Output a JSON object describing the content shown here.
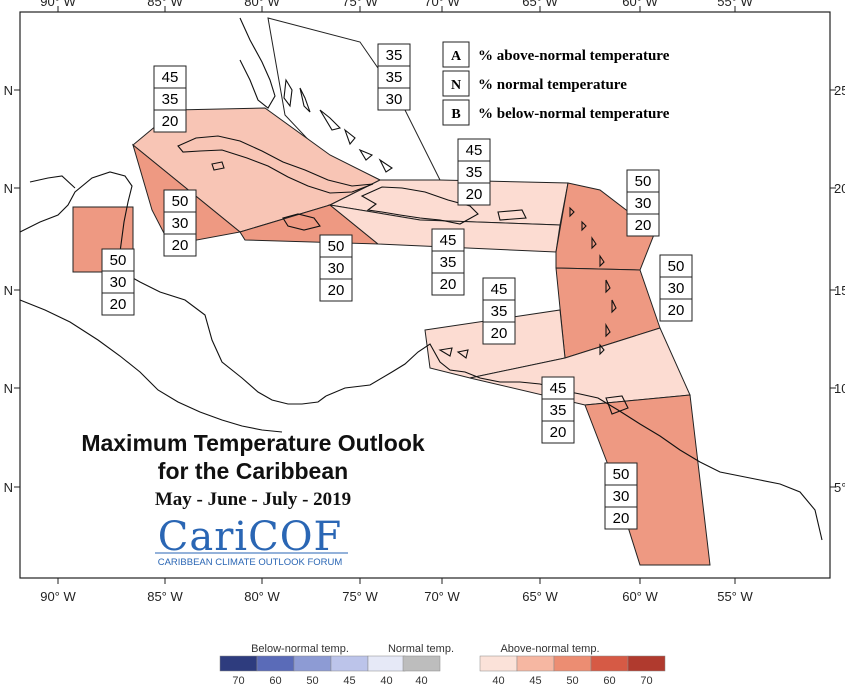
{
  "axis": {
    "lon_ticks": [
      "90° W",
      "85° W",
      "80° W",
      "75° W",
      "70° W",
      "65° W",
      "60° W",
      "55° W"
    ],
    "lat_left": [
      "N",
      "N",
      "N",
      "N",
      "N"
    ],
    "lat_right": [
      "25°",
      "20°",
      "15°",
      "10°",
      "5°"
    ]
  },
  "key": [
    {
      "letter": "A",
      "text": "% above-normal temperature"
    },
    {
      "letter": "N",
      "text": "% normal temperature"
    },
    {
      "letter": "B",
      "text": "% below-normal temperature"
    }
  ],
  "regions": [
    {
      "id": "bahamas",
      "A": "35",
      "N": "35",
      "B": "30",
      "color": "#ffffff"
    },
    {
      "id": "cuba",
      "A": "45",
      "N": "35",
      "B": "20",
      "color": "#f8c5b5"
    },
    {
      "id": "west-caribbean",
      "A": "50",
      "N": "30",
      "B": "20",
      "color": "#ee9982"
    },
    {
      "id": "belize",
      "A": "50",
      "N": "30",
      "B": "20",
      "color": "#ee9982"
    },
    {
      "id": "jamaica",
      "A": "50",
      "N": "30",
      "B": "20",
      "color": "#ee9982"
    },
    {
      "id": "hispaniola-pr",
      "A": "45",
      "N": "35",
      "B": "20",
      "color": "#fcdcd2"
    },
    {
      "id": "hispaniola-south",
      "A": "45",
      "N": "35",
      "B": "20",
      "color": "#fcdcd2"
    },
    {
      "id": "leeward",
      "A": "50",
      "N": "30",
      "B": "20",
      "color": "#ee9982"
    },
    {
      "id": "windward",
      "A": "50",
      "N": "30",
      "B": "20",
      "color": "#ee9982"
    },
    {
      "id": "abc-islands",
      "A": "45",
      "N": "35",
      "B": "20",
      "color": "#fcdcd2"
    },
    {
      "id": "trinidad",
      "A": "45",
      "N": "35",
      "B": "20",
      "color": "#fcdcd2"
    },
    {
      "id": "guianas",
      "A": "50",
      "N": "30",
      "B": "20",
      "color": "#ee9982"
    }
  ],
  "title": {
    "line1": "Maximum Temperature Outlook",
    "line2": "for the Caribbean",
    "period": "May - June - July - 2019"
  },
  "logo": {
    "name": "CariCOF",
    "subtitle": "CARIBBEAN CLIMATE OUTLOOK FORUM"
  },
  "legend": {
    "below": {
      "title": "Below-normal temp.",
      "labels": [
        "70",
        "60",
        "50",
        "45",
        "40"
      ],
      "colors": [
        "#2e3c7e",
        "#5a6bb8",
        "#8d9bd4",
        "#bcc4ea",
        "#e6e9f7"
      ]
    },
    "normal": {
      "title": "Normal temp.",
      "labels": [
        "40"
      ],
      "colors": [
        "#bdbdbd"
      ]
    },
    "above": {
      "title": "Above-normal temp.",
      "labels": [
        "40",
        "45",
        "50",
        "60",
        "70"
      ],
      "colors": [
        "#fbe2d9",
        "#f6b7a2",
        "#ec8d72",
        "#d65a45",
        "#b03a2e"
      ]
    }
  }
}
